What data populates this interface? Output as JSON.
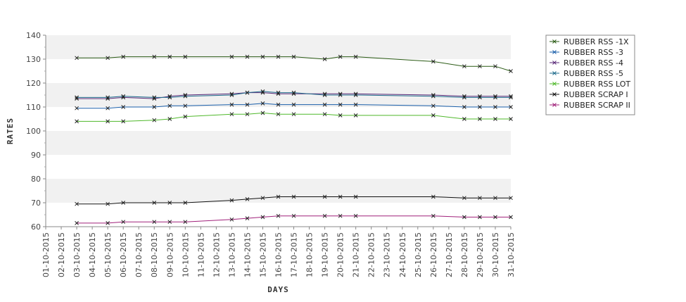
{
  "chart_data": {
    "type": "line",
    "title": "",
    "xlabel": "DAYS",
    "ylabel": "RATES",
    "ylim": [
      60,
      140
    ],
    "yticks": [
      60,
      70,
      80,
      90,
      100,
      110,
      120,
      130,
      140
    ],
    "grid": "horizontal alternating bands",
    "legend_position": "top-right",
    "categories": [
      "01-10-2015",
      "02-10-2015",
      "03-10-2015",
      "04-10-2015",
      "05-10-2015",
      "06-10-2015",
      "07-10-2015",
      "08-10-2015",
      "09-10-2015",
      "10-10-2015",
      "11-10-2015",
      "12-10-2015",
      "13-10-2015",
      "14-10-2015",
      "15-10-2015",
      "16-10-2015",
      "17-10-2015",
      "18-10-2015",
      "19-10-2015",
      "20-10-2015",
      "21-10-2015",
      "22-10-2015",
      "23-10-2015",
      "24-10-2015",
      "25-10-2015",
      "26-10-2015",
      "27-10-2015",
      "28-10-2015",
      "29-10-2015",
      "30-10-2015",
      "31-10-2015"
    ],
    "series": [
      {
        "name": "RUBBER RSS -1X",
        "color": "#2a5a14",
        "points": [
          [
            "03-10-2015",
            130.5
          ],
          [
            "05-10-2015",
            130.5
          ],
          [
            "06-10-2015",
            131
          ],
          [
            "08-10-2015",
            131
          ],
          [
            "09-10-2015",
            131
          ],
          [
            "10-10-2015",
            131
          ],
          [
            "13-10-2015",
            131
          ],
          [
            "14-10-2015",
            131
          ],
          [
            "15-10-2015",
            131
          ],
          [
            "16-10-2015",
            131
          ],
          [
            "17-10-2015",
            131
          ],
          [
            "19-10-2015",
            130
          ],
          [
            "20-10-2015",
            131
          ],
          [
            "21-10-2015",
            131
          ],
          [
            "26-10-2015",
            129
          ],
          [
            "28-10-2015",
            127
          ],
          [
            "29-10-2015",
            127
          ],
          [
            "30-10-2015",
            127
          ],
          [
            "31-10-2015",
            125
          ]
        ]
      },
      {
        "name": "RUBBER RSS -3",
        "color": "#1a5faa",
        "points": [
          [
            "03-10-2015",
            109.5
          ],
          [
            "05-10-2015",
            109.5
          ],
          [
            "06-10-2015",
            110
          ],
          [
            "08-10-2015",
            110
          ],
          [
            "09-10-2015",
            110.5
          ],
          [
            "10-10-2015",
            110.5
          ],
          [
            "13-10-2015",
            111
          ],
          [
            "14-10-2015",
            111
          ],
          [
            "15-10-2015",
            111.5
          ],
          [
            "16-10-2015",
            111
          ],
          [
            "17-10-2015",
            111
          ],
          [
            "19-10-2015",
            111
          ],
          [
            "20-10-2015",
            111
          ],
          [
            "21-10-2015",
            111
          ],
          [
            "26-10-2015",
            110.5
          ],
          [
            "28-10-2015",
            110
          ],
          [
            "29-10-2015",
            110
          ],
          [
            "30-10-2015",
            110
          ],
          [
            "31-10-2015",
            110
          ]
        ]
      },
      {
        "name": "RUBBER RSS -4",
        "color": "#5a2a78",
        "points": [
          [
            "03-10-2015",
            113.5
          ],
          [
            "05-10-2015",
            113.5
          ],
          [
            "06-10-2015",
            114
          ],
          [
            "08-10-2015",
            113.5
          ],
          [
            "09-10-2015",
            114.5
          ],
          [
            "10-10-2015",
            115
          ],
          [
            "13-10-2015",
            115.5
          ],
          [
            "14-10-2015",
            116
          ],
          [
            "15-10-2015",
            116
          ],
          [
            "16-10-2015",
            115.5
          ],
          [
            "17-10-2015",
            115.5
          ],
          [
            "19-10-2015",
            115.5
          ],
          [
            "20-10-2015",
            115.5
          ],
          [
            "21-10-2015",
            115.5
          ],
          [
            "26-10-2015",
            115
          ],
          [
            "28-10-2015",
            114.5
          ],
          [
            "29-10-2015",
            114.5
          ],
          [
            "30-10-2015",
            114.5
          ],
          [
            "31-10-2015",
            114.5
          ]
        ]
      },
      {
        "name": "RUBBER RSS -5",
        "color": "#1f6c8c",
        "points": [
          [
            "03-10-2015",
            114
          ],
          [
            "05-10-2015",
            114
          ],
          [
            "06-10-2015",
            114.5
          ],
          [
            "08-10-2015",
            114
          ],
          [
            "09-10-2015",
            114
          ],
          [
            "10-10-2015",
            114.5
          ],
          [
            "13-10-2015",
            115
          ],
          [
            "14-10-2015",
            116
          ],
          [
            "15-10-2015",
            116.5
          ],
          [
            "16-10-2015",
            116
          ],
          [
            "17-10-2015",
            116
          ],
          [
            "19-10-2015",
            115
          ],
          [
            "20-10-2015",
            115
          ],
          [
            "21-10-2015",
            115
          ],
          [
            "26-10-2015",
            114.5
          ],
          [
            "28-10-2015",
            114
          ],
          [
            "29-10-2015",
            114
          ],
          [
            "30-10-2015",
            114
          ],
          [
            "31-10-2015",
            114
          ]
        ]
      },
      {
        "name": "RUBBER RSS LOT",
        "color": "#4fb82a",
        "points": [
          [
            "03-10-2015",
            104
          ],
          [
            "05-10-2015",
            104
          ],
          [
            "06-10-2015",
            104
          ],
          [
            "08-10-2015",
            104.5
          ],
          [
            "09-10-2015",
            105
          ],
          [
            "10-10-2015",
            106
          ],
          [
            "13-10-2015",
            107
          ],
          [
            "14-10-2015",
            107
          ],
          [
            "15-10-2015",
            107.5
          ],
          [
            "16-10-2015",
            107
          ],
          [
            "17-10-2015",
            107
          ],
          [
            "19-10-2015",
            107
          ],
          [
            "20-10-2015",
            106.5
          ],
          [
            "21-10-2015",
            106.5
          ],
          [
            "26-10-2015",
            106.5
          ],
          [
            "28-10-2015",
            105
          ],
          [
            "29-10-2015",
            105
          ],
          [
            "30-10-2015",
            105
          ],
          [
            "31-10-2015",
            105
          ]
        ]
      },
      {
        "name": "RUBBER SCRAP I",
        "color": "#111111",
        "points": [
          [
            "03-10-2015",
            69.5
          ],
          [
            "05-10-2015",
            69.5
          ],
          [
            "06-10-2015",
            70
          ],
          [
            "08-10-2015",
            70
          ],
          [
            "09-10-2015",
            70
          ],
          [
            "10-10-2015",
            70
          ],
          [
            "13-10-2015",
            71
          ],
          [
            "14-10-2015",
            71.5
          ],
          [
            "15-10-2015",
            72
          ],
          [
            "16-10-2015",
            72.5
          ],
          [
            "17-10-2015",
            72.5
          ],
          [
            "19-10-2015",
            72.5
          ],
          [
            "20-10-2015",
            72.5
          ],
          [
            "21-10-2015",
            72.5
          ],
          [
            "26-10-2015",
            72.5
          ],
          [
            "28-10-2015",
            72
          ],
          [
            "29-10-2015",
            72
          ],
          [
            "30-10-2015",
            72
          ],
          [
            "31-10-2015",
            72
          ]
        ]
      },
      {
        "name": "RUBBER SCRAP II",
        "color": "#a0207a",
        "points": [
          [
            "03-10-2015",
            61.5
          ],
          [
            "05-10-2015",
            61.5
          ],
          [
            "06-10-2015",
            62
          ],
          [
            "08-10-2015",
            62
          ],
          [
            "09-10-2015",
            62
          ],
          [
            "10-10-2015",
            62
          ],
          [
            "13-10-2015",
            63
          ],
          [
            "14-10-2015",
            63.5
          ],
          [
            "15-10-2015",
            64
          ],
          [
            "16-10-2015",
            64.5
          ],
          [
            "17-10-2015",
            64.5
          ],
          [
            "19-10-2015",
            64.5
          ],
          [
            "20-10-2015",
            64.5
          ],
          [
            "21-10-2015",
            64.5
          ],
          [
            "26-10-2015",
            64.5
          ],
          [
            "28-10-2015",
            64
          ],
          [
            "29-10-2015",
            64
          ],
          [
            "30-10-2015",
            64
          ],
          [
            "31-10-2015",
            64
          ]
        ]
      }
    ]
  }
}
